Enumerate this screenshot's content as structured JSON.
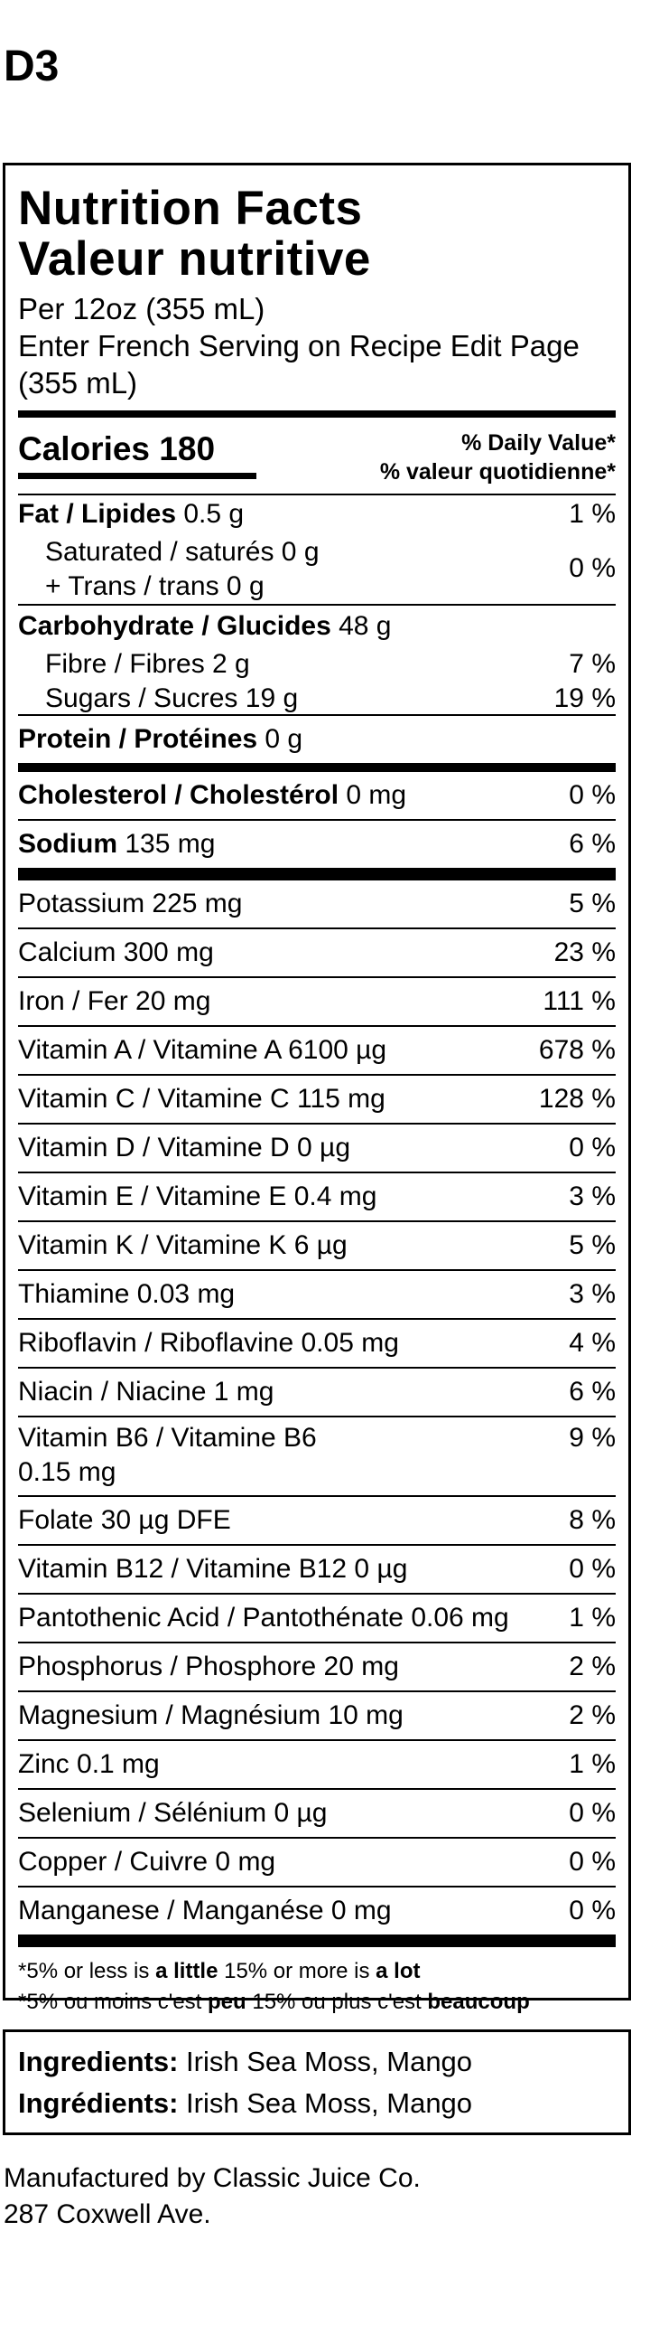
{
  "code": "D3",
  "heading": {
    "en": "Nutrition Facts",
    "fr": "Valeur nutritive"
  },
  "serving": {
    "line1": "Per 12oz (355 mL)",
    "line2": "Enter French Serving on Recipe Edit Page",
    "line3": "(355 mL)"
  },
  "calories": {
    "label": "Calories 180"
  },
  "dv_header": {
    "en": "% Daily Value*",
    "fr": "% valeur quotidienne*"
  },
  "fat": {
    "label": "Fat / Lipides",
    "amount": " 0.5 g",
    "pct": "1 %"
  },
  "saturated": {
    "label": "Saturated / saturés 0 g"
  },
  "trans": {
    "label": "+ Trans / trans 0 g",
    "pct": "0 %"
  },
  "carb": {
    "label": "Carbohydrate / Glucides",
    "amount": " 48 g"
  },
  "fibre": {
    "label": "Fibre / Fibres 2 g",
    "pct": "7 %"
  },
  "sugars": {
    "label": "Sugars / Sucres 19 g",
    "pct": "19 %"
  },
  "protein": {
    "label": "Protein / Protéines",
    "amount": " 0 g"
  },
  "cholesterol": {
    "label": "Cholesterol / Cholestérol",
    "amount": " 0 mg",
    "pct": "0 %"
  },
  "sodium": {
    "label": "Sodium",
    "amount": " 135 mg",
    "pct": "6 %"
  },
  "micros": [
    {
      "label": "Potassium 225 mg",
      "pct": "5 %"
    },
    {
      "label": "Calcium 300 mg",
      "pct": "23 %"
    },
    {
      "label": "Iron / Fer 20 mg",
      "pct": "111 %"
    },
    {
      "label": "Vitamin A / Vitamine A 6100 µg",
      "pct": "678 %"
    },
    {
      "label": "Vitamin C / Vitamine C 115 mg",
      "pct": "128 %"
    },
    {
      "label": "Vitamin D / Vitamine D 0 µg",
      "pct": "0 %"
    },
    {
      "label": "Vitamin E / Vitamine E 0.4 mg",
      "pct": "3 %"
    },
    {
      "label": "Vitamin K / Vitamine K 6 µg",
      "pct": "5 %"
    },
    {
      "label": "Thiamine 0.03 mg",
      "pct": "3 %"
    },
    {
      "label": "Riboflavin / Riboflavine 0.05 mg",
      "pct": "4 %"
    },
    {
      "label": "Niacin / Niacine 1 mg",
      "pct": "6 %"
    }
  ],
  "b6": {
    "line1": "Vitamin B6 / Vitamine B6",
    "line2": "0.15 mg",
    "pct": "9 %"
  },
  "micros2": [
    {
      "label": "Folate 30 µg DFE",
      "pct": "8 %"
    },
    {
      "label": "Vitamin B12 / Vitamine B12 0 µg",
      "pct": "0 %"
    },
    {
      "label": "Pantothenic Acid / Pantothénate 0.06 mg",
      "pct": "1 %"
    },
    {
      "label": "Phosphorus / Phosphore 20 mg",
      "pct": "2 %"
    },
    {
      "label": "Magnesium / Magnésium 10 mg",
      "pct": "2 %"
    },
    {
      "label": "Zinc 0.1 mg",
      "pct": "1 %"
    },
    {
      "label": "Selenium / Sélénium 0 µg",
      "pct": "0 %"
    },
    {
      "label": "Copper / Cuivre 0 mg",
      "pct": "0 %"
    },
    {
      "label": "Manganese / Manganése 0 mg",
      "pct": "0 %"
    }
  ],
  "footnote": {
    "en_a": "*5% or less is ",
    "en_b": "a little",
    "en_c": " 15% or more is ",
    "en_d": "a lot",
    "fr_a": "*5% ou moins c'est ",
    "fr_b": "peu",
    "fr_c": " 15% ou plus c'est ",
    "fr_d": "beaucoup"
  },
  "ingredients": {
    "en_label": "Ingredients:",
    "en_value": " Irish Sea Moss, Mango",
    "fr_label": "Ingrédients:",
    "fr_value": " Irish Sea Moss, Mango"
  },
  "manufacturer": {
    "line1": "Manufactured by Classic Juice Co.",
    "line2": "287 Coxwell Ave."
  }
}
